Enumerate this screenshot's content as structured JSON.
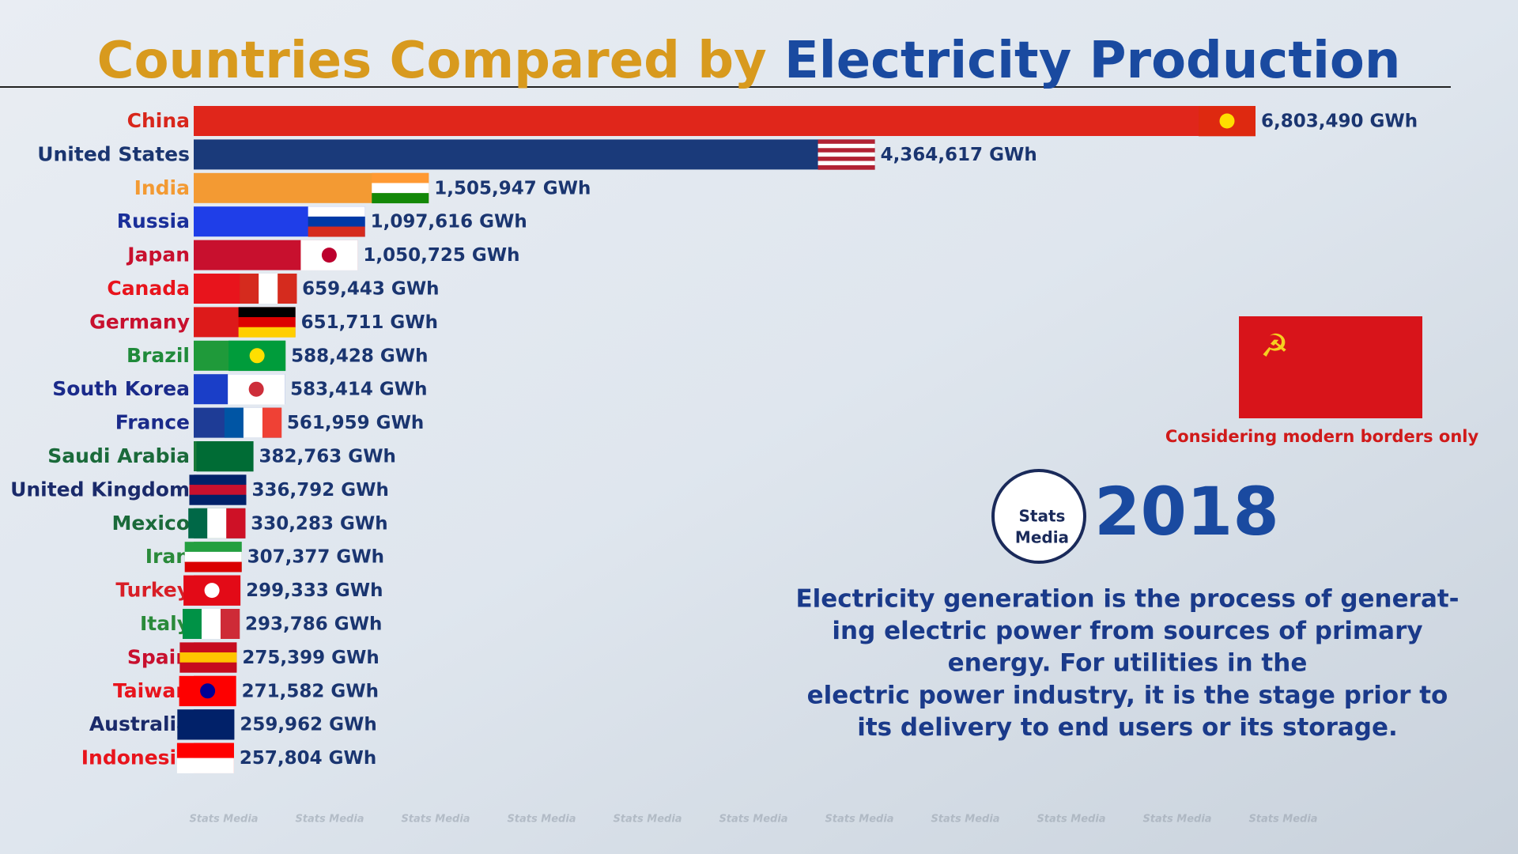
{
  "chart_data": {
    "type": "bar",
    "orientation": "horizontal",
    "title": [
      "Countries Compared by",
      "Electricity Production"
    ],
    "title_colors": [
      "#d89a1e",
      "#1a4aa0"
    ],
    "categories": [
      "China",
      "United States",
      "India",
      "Russia",
      "Japan",
      "Canada",
      "Germany",
      "Brazil",
      "South Korea",
      "France",
      "Saudi Arabia",
      "United Kingdom",
      "Mexico",
      "Iran",
      "Turkey",
      "Italy",
      "Spain",
      "Taiwan",
      "Australia",
      "Indonesia"
    ],
    "values": [
      6803490,
      4364617,
      1505947,
      1097616,
      1050725,
      659443,
      651711,
      588428,
      583414,
      561959,
      382763,
      336792,
      330283,
      307377,
      299333,
      293786,
      275399,
      271582,
      259962,
      257804
    ],
    "value_labels": [
      "6,803,490 GWh",
      "4,364,617 GWh",
      "1,505,947 GWh",
      "1,097,616 GWh",
      "1,050,725 GWh",
      "659,443 GWh",
      "651,711 GWh",
      "588,428 GWh",
      "583,414 GWh",
      "561,959 GWh",
      "382,763 GWh",
      "336,792 GWh",
      "330,283 GWh",
      "307,377 GWh",
      "299,333 GWh",
      "293,786 GWh",
      "275,399 GWh",
      "271,582 GWh",
      "259,962 GWh",
      "257,804 GWh"
    ],
    "colors": [
      "#e0261b",
      "#1a3a7a",
      "#f39a33",
      "#1f3ee8",
      "#c8102e",
      "#e8141c",
      "#dd1a1a",
      "#1f9a3a",
      "#1a3ec8",
      "#1e3c96",
      "#1a7a3a",
      "#0f2a6a",
      "#1a6a48",
      "#2a9a3a",
      "#d81e26",
      "#2a9a3a",
      "#c8142a",
      "#e8141c",
      "#0f2a6a",
      "#e8141c"
    ],
    "label_colors": [
      "#d8261b",
      "#1a3570",
      "#f39a33",
      "#1a2f9a",
      "#c8102e",
      "#e8141c",
      "#c8102e",
      "#1f8a3a",
      "#1a2a8a",
      "#1a2a8a",
      "#1a6a3a",
      "#1a2a6a",
      "#1a6a3a",
      "#2a8a3a",
      "#d81e26",
      "#2a8a3a",
      "#c8102e",
      "#e8141c",
      "#1a2a6a",
      "#e8141c"
    ],
    "year": "2018",
    "note": "Considering modern borders only",
    "logo": [
      "Stats",
      "Media"
    ],
    "watermark": "Stats Media",
    "description": [
      "Electricity generation is the process of generat-",
      "ing electric power from sources of primary",
      "energy. For utilities in the",
      "electric power industry, it is the stage prior to",
      "its delivery to end users or its storage."
    ]
  }
}
